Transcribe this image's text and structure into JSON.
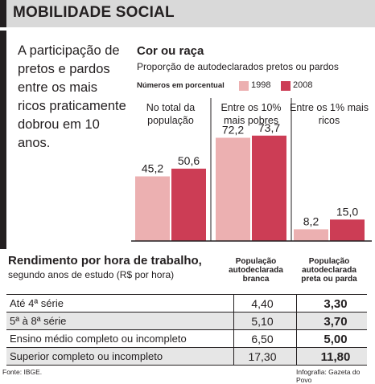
{
  "header": {
    "title": "MOBILIDADE SOCIAL"
  },
  "intro": {
    "text": "A participação de pretos e pardos entre os mais ricos praticamente dobrou em 10 anos."
  },
  "colors": {
    "series_1998": "#ecb0b1",
    "series_2008": "#cc3d55",
    "header_bg": "#d9d9d9",
    "alt_row": "#e6e6e6",
    "ink": "#231f20"
  },
  "chart_data": {
    "type": "bar",
    "title": "Cor ou raça",
    "subtitle": "Proporção de autodeclarados pretos ou pardos",
    "units_caption": "Números em porcentual",
    "categories": [
      "No total da população",
      "Entre os 10% mais pobres",
      "Entre os 1% mais ricos"
    ],
    "series": [
      {
        "name": "1998",
        "values": [
          45.2,
          72.2,
          8.2
        ],
        "labels": [
          "45,2",
          "72,2",
          "8,2"
        ]
      },
      {
        "name": "2008",
        "values": [
          50.6,
          73.7,
          15.0
        ],
        "labels": [
          "50,6",
          "73,7",
          "15,0"
        ]
      }
    ],
    "legend_position": "top",
    "ylim": [
      0,
      100
    ],
    "grid": false
  },
  "table": {
    "title": "Rendimento por hora de trabalho,",
    "subtitle": "segundo anos de estudo (R$ por hora)",
    "col_headers": [
      "População autodeclarada branca",
      "População autodeclarada preta ou parda"
    ],
    "rows": [
      {
        "label": "Até 4ª série",
        "v1": "4,40",
        "v2": "3,30"
      },
      {
        "label": "5ª à 8ª série",
        "v1": "5,10",
        "v2": "3,70"
      },
      {
        "label": "Ensino médio completo ou incompleto",
        "v1": "6,50",
        "v2": "5,00"
      },
      {
        "label": "Superior completo ou incompleto",
        "v1": "17,30",
        "v2": "11,80"
      }
    ]
  },
  "footer": {
    "source": "Fonte: IBGE.",
    "credit": "Infografia: Gazeta do Povo"
  }
}
